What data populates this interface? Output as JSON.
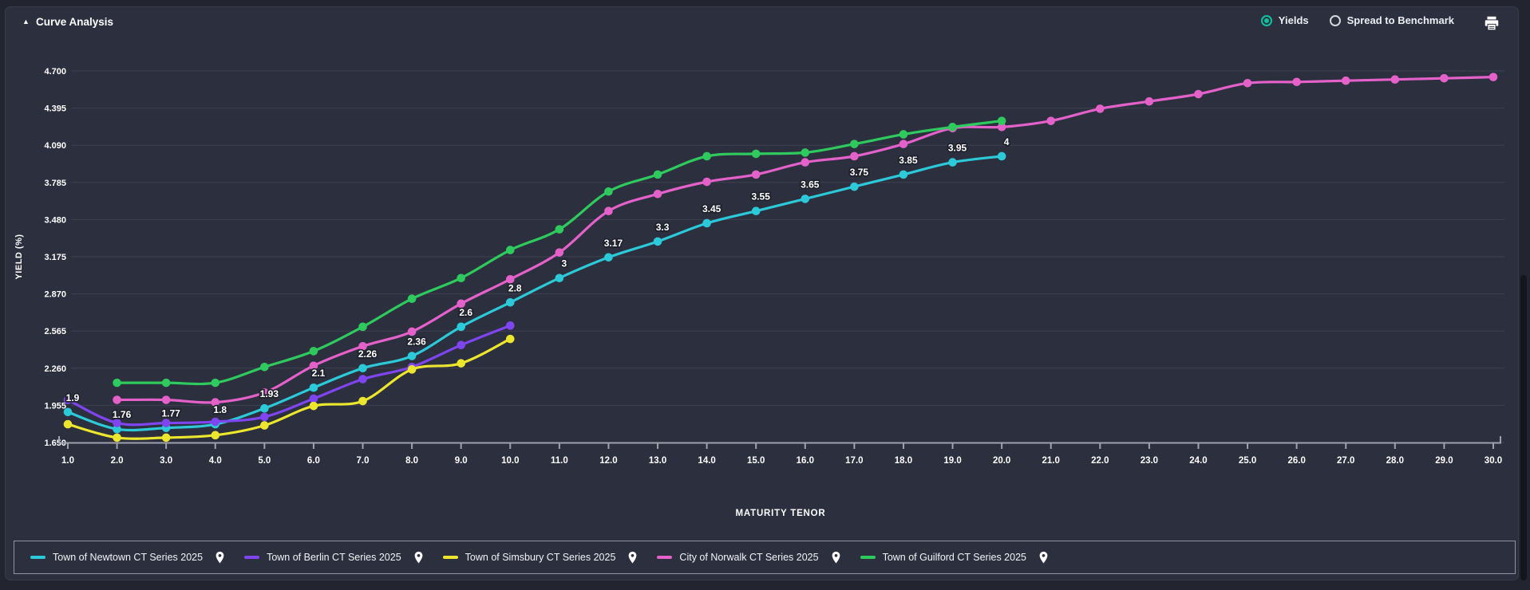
{
  "header": {
    "title": "Curve Analysis",
    "collapse_icon": "triangle-up"
  },
  "view_toggle": {
    "options": [
      {
        "label": "Yields",
        "selected": true
      },
      {
        "label": "Spread to Benchmark",
        "selected": false
      }
    ],
    "accent_color": "#0ec2a1"
  },
  "toolbar": {
    "print_icon": "printer"
  },
  "chart_data": {
    "type": "line",
    "title": "Curve Analysis",
    "xlabel": "MATURITY TENOR",
    "ylabel": "YIELD (%)",
    "xlim": [
      1,
      30
    ],
    "ylim": [
      1.65,
      4.7
    ],
    "grid": true,
    "legend_position": "bottom",
    "x_ticks": [
      "1.0",
      "2.0",
      "3.0",
      "4.0",
      "5.0",
      "6.0",
      "7.0",
      "8.0",
      "9.0",
      "10.0",
      "11.0",
      "12.0",
      "13.0",
      "14.0",
      "15.0",
      "16.0",
      "17.0",
      "18.0",
      "19.0",
      "20.0",
      "21.0",
      "22.0",
      "23.0",
      "24.0",
      "25.0",
      "26.0",
      "27.0",
      "28.0",
      "29.0",
      "30.0"
    ],
    "y_ticks": [
      "1.650",
      "1.955",
      "2.260",
      "2.565",
      "2.870",
      "3.175",
      "3.480",
      "3.785",
      "4.090",
      "4.395",
      "4.700"
    ],
    "series": [
      {
        "name": "Town of Newtown CT Series 2025",
        "color": "#2cc9d9",
        "x": [
          1,
          2,
          3,
          4,
          5,
          6,
          7,
          8,
          9,
          10,
          11,
          12,
          13,
          14,
          15,
          16,
          17,
          18,
          19,
          20
        ],
        "values": [
          1.9,
          1.76,
          1.77,
          1.8,
          1.93,
          2.1,
          2.26,
          2.36,
          2.6,
          2.8,
          3.0,
          3.17,
          3.3,
          3.45,
          3.55,
          3.65,
          3.75,
          3.85,
          3.95,
          4.0
        ],
        "point_labels": [
          "1.9",
          "1.76",
          "1.77",
          "1.8",
          "1.93",
          "2.1",
          "2.26",
          "2.36",
          "2.6",
          "2.8",
          "3",
          "3.17",
          "3.3",
          "3.45",
          "3.55",
          "3.65",
          "3.75",
          "3.85",
          "3.95",
          "4"
        ]
      },
      {
        "name": "Town of Berlin CT Series 2025",
        "color": "#7e45f0",
        "x": [
          1,
          2,
          3,
          4,
          5,
          6,
          7,
          8,
          9,
          10
        ],
        "values": [
          2.0,
          1.81,
          1.81,
          1.82,
          1.86,
          2.01,
          2.17,
          2.27,
          2.45,
          2.61
        ]
      },
      {
        "name": "Town of Simsbury CT Series 2025",
        "color": "#ece62e",
        "x": [
          1,
          2,
          3,
          4,
          5,
          6,
          7,
          8,
          9,
          10
        ],
        "values": [
          1.8,
          1.69,
          1.69,
          1.71,
          1.79,
          1.95,
          1.99,
          2.25,
          2.3,
          2.5
        ]
      },
      {
        "name": "City of Norwalk CT Series 2025",
        "color": "#e361c9",
        "x": [
          2,
          3,
          4,
          5,
          6,
          7,
          8,
          9,
          10,
          11,
          12,
          13,
          14,
          15,
          16,
          17,
          18,
          19,
          20,
          21,
          22,
          23,
          24,
          25,
          26,
          27,
          28,
          29,
          30
        ],
        "values": [
          2.0,
          2.0,
          1.98,
          2.06,
          2.28,
          2.44,
          2.56,
          2.79,
          2.99,
          3.21,
          3.55,
          3.69,
          3.79,
          3.85,
          3.95,
          4.0,
          4.1,
          4.23,
          4.24,
          4.29,
          4.39,
          4.45,
          4.51,
          4.6,
          4.61,
          4.62,
          4.63,
          4.64,
          4.65
        ]
      },
      {
        "name": "Town of Guilford CT Series 2025",
        "color": "#2fca5e",
        "x": [
          2,
          3,
          4,
          5,
          6,
          7,
          8,
          9,
          10,
          11,
          12,
          13,
          14,
          15,
          16,
          17,
          18,
          19,
          20
        ],
        "values": [
          2.14,
          2.14,
          2.14,
          2.27,
          2.4,
          2.6,
          2.83,
          3.0,
          3.23,
          3.4,
          3.71,
          3.85,
          4.0,
          4.02,
          4.03,
          4.1,
          4.18,
          4.24,
          4.29
        ]
      }
    ]
  },
  "legend": {
    "pin_icon": "map-pin",
    "items": [
      {
        "label": "Town of Newtown CT Series 2025"
      },
      {
        "label": "Town of Berlin CT Series 2025"
      },
      {
        "label": "Town of Simsbury CT Series 2025"
      },
      {
        "label": "City of Norwalk CT Series 2025"
      },
      {
        "label": "Town of Guilford CT Series 2025"
      }
    ]
  },
  "colors": {
    "panel_bg": "#2c2f3e",
    "page_bg": "#22252f",
    "gridline": "#3e4150",
    "axis": "#9fa2ac",
    "text": "#ffffff"
  }
}
